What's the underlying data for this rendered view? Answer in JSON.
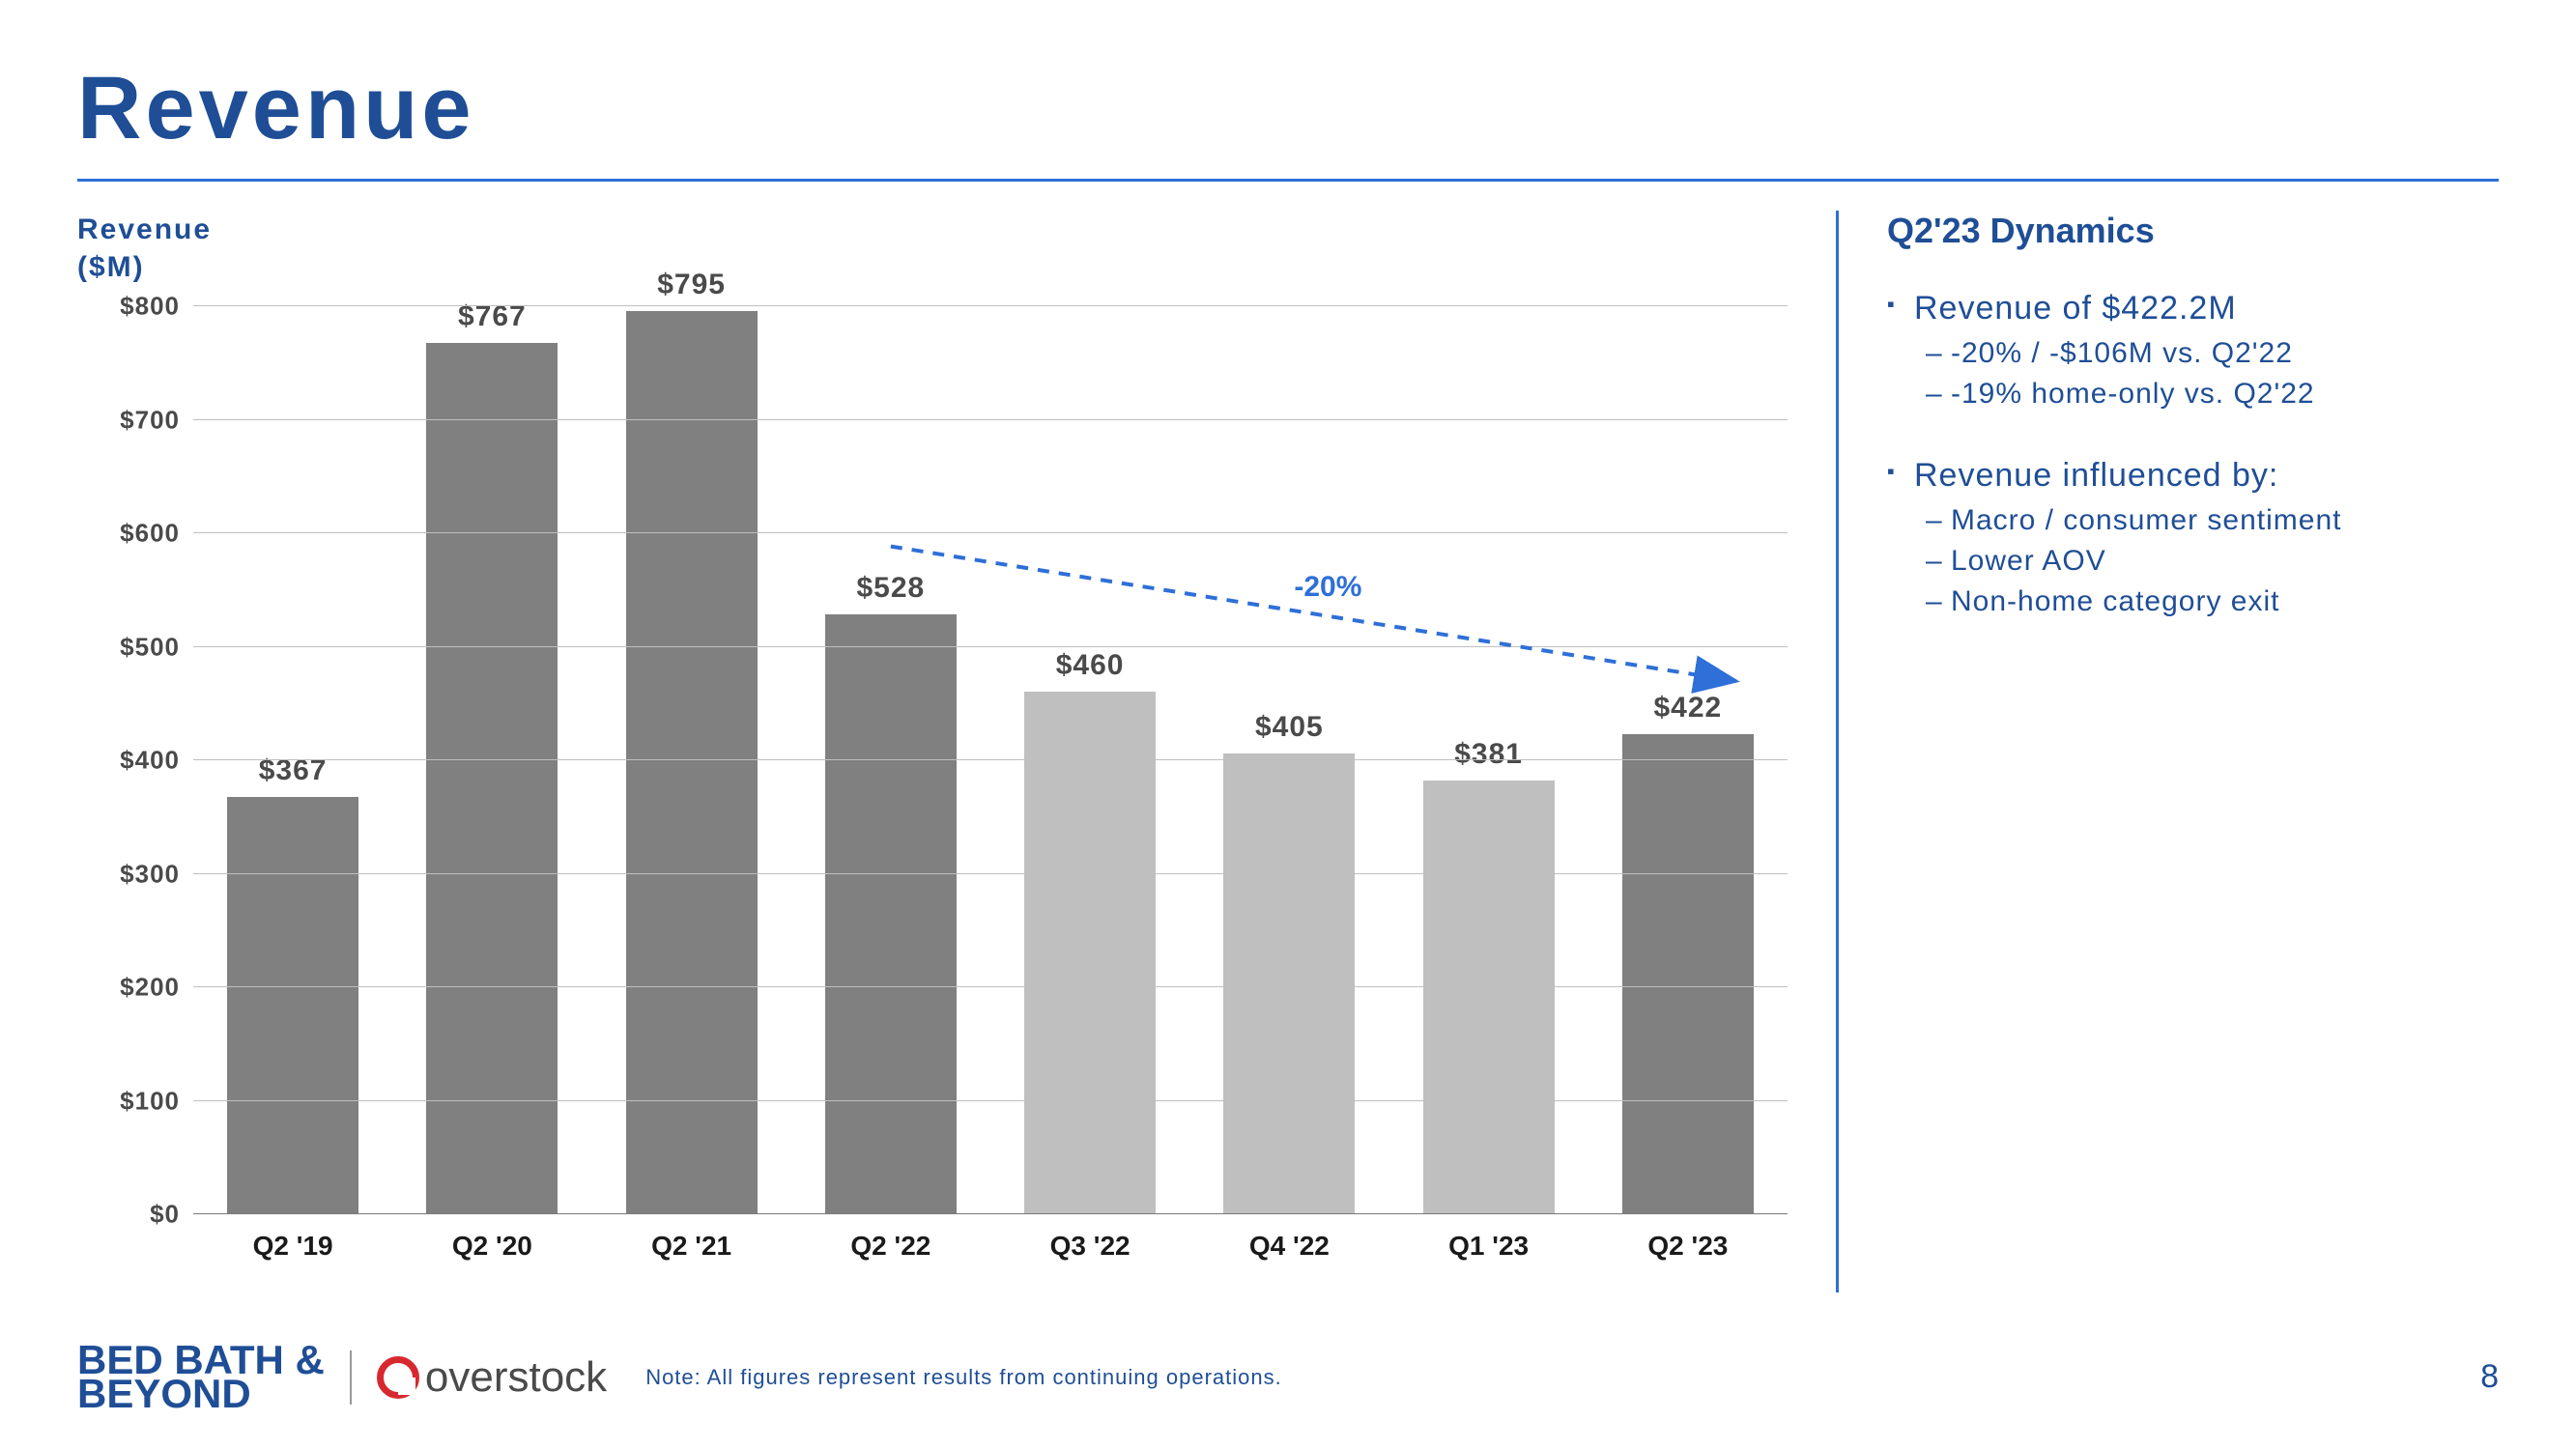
{
  "colors": {
    "brand_blue": "#1f4e96",
    "accent_blue": "#2e6fd8",
    "grid": "#bfbfbf",
    "bar_dark": "#808080",
    "bar_light": "#bfbfbf",
    "text_dark": "#4a4a4a",
    "text_black": "#1a1a1a",
    "bbb": "#1f4e96"
  },
  "title": "Revenue",
  "chart": {
    "type": "bar",
    "ytitle_line1": "Revenue",
    "ytitle_line2": "($M)",
    "ylim": [
      0,
      800
    ],
    "ytick_step": 100,
    "ytick_prefix": "$",
    "categories": [
      "Q2 '19",
      "Q2 '20",
      "Q2 '21",
      "Q2 '22",
      "Q3 '22",
      "Q4 '22",
      "Q1 '23",
      "Q2 '23"
    ],
    "values": [
      367,
      767,
      795,
      528,
      460,
      405,
      381,
      422
    ],
    "value_prefix": "$",
    "bar_shade": [
      "dark",
      "dark",
      "dark",
      "dark",
      "light",
      "light",
      "light",
      "dark"
    ],
    "bar_width": 0.66,
    "annotation": {
      "label": "-20%",
      "from_bar": 3,
      "to_bar": 7
    }
  },
  "dynamics": {
    "heading": "Q2'23 Dynamics",
    "groups": [
      {
        "head": "Revenue of $422.2M",
        "subs": [
          "-20% / -$106M vs. Q2'22",
          "-19% home-only vs. Q2'22"
        ]
      },
      {
        "head": "Revenue influenced by:",
        "subs": [
          "Macro / consumer sentiment",
          "Lower AOV",
          "Non-home category exit"
        ]
      }
    ]
  },
  "footer": {
    "bbb_line1": "BED BATH &",
    "bbb_line2": "BEYOND",
    "overstock": "overstock",
    "note": "Note: All figures represent results from continuing operations.",
    "page": "8"
  }
}
